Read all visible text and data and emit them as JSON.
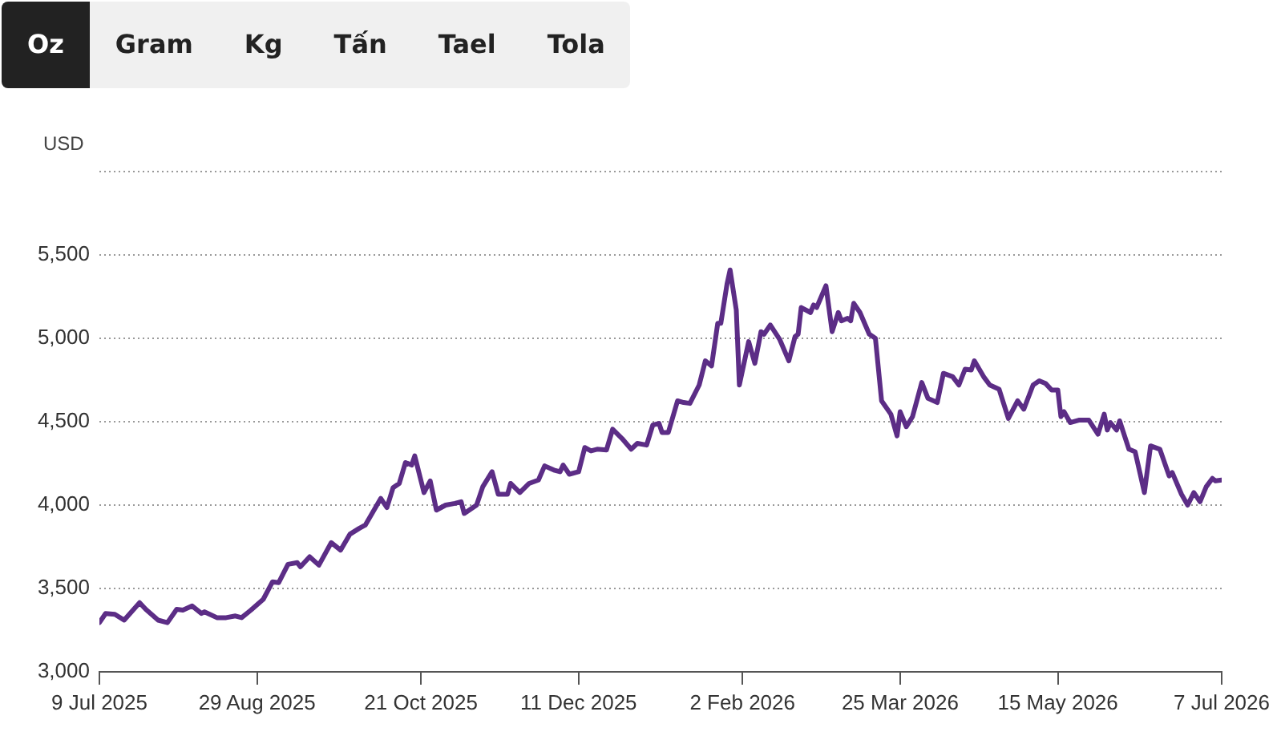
{
  "chart_data": {
    "type": "line",
    "ylabel": "USD",
    "annotations": [
      "Oz",
      "Gram",
      "Kg",
      "Tấn",
      "Tael",
      "Tola"
    ],
    "x": [
      "2025-07-09",
      "2025-07-11",
      "2025-07-14",
      "2025-07-17",
      "2025-07-22",
      "2025-07-24",
      "2025-07-28",
      "2025-07-31",
      "2025-08-03",
      "2025-08-05",
      "2025-08-08",
      "2025-08-11",
      "2025-08-12",
      "2025-08-16",
      "2025-08-19",
      "2025-08-22",
      "2025-08-24",
      "2025-08-27",
      "2025-08-31",
      "2025-09-03",
      "2025-09-05",
      "2025-09-08",
      "2025-09-11",
      "2025-09-12",
      "2025-09-15",
      "2025-09-18",
      "2025-09-22",
      "2025-09-25",
      "2025-09-28",
      "2025-10-01",
      "2025-10-03",
      "2025-10-08",
      "2025-10-10",
      "2025-10-12",
      "2025-10-14",
      "2025-10-16",
      "2025-10-18",
      "2025-10-19",
      "2025-10-22",
      "2025-10-24",
      "2025-10-26",
      "2025-10-29",
      "2025-11-01",
      "2025-11-03",
      "2025-11-04",
      "2025-11-08",
      "2025-11-10",
      "2025-11-13",
      "2025-11-15",
      "2025-11-18",
      "2025-11-19",
      "2025-11-22",
      "2025-11-25",
      "2025-11-28",
      "2025-11-30",
      "2025-12-03",
      "2025-12-05",
      "2025-12-06",
      "2025-12-08",
      "2025-12-11",
      "2025-12-13",
      "2025-12-15",
      "2025-12-17",
      "2025-12-20",
      "2025-12-22",
      "2025-12-25",
      "2025-12-28",
      "2025-12-30",
      "2026-01-02",
      "2026-01-04",
      "2026-01-06",
      "2026-01-07",
      "2026-01-09",
      "2026-01-12",
      "2026-01-14",
      "2026-01-16",
      "2026-01-19",
      "2026-01-21",
      "2026-01-23",
      "2026-01-25",
      "2026-01-26",
      "2026-01-28",
      "2026-01-29",
      "2026-01-31",
      "2026-02-01",
      "2026-02-04",
      "2026-02-06",
      "2026-02-08",
      "2026-02-09",
      "2026-02-11",
      "2026-02-14",
      "2026-02-17",
      "2026-02-19",
      "2026-02-20",
      "2026-02-21",
      "2026-02-24",
      "2026-02-25",
      "2026-02-26",
      "2026-03-01",
      "2026-03-03",
      "2026-03-05",
      "2026-03-06",
      "2026-03-08",
      "2026-03-09",
      "2026-03-10",
      "2026-03-12",
      "2026-03-15",
      "2026-03-17",
      "2026-03-19",
      "2026-03-22",
      "2026-03-24",
      "2026-03-25",
      "2026-03-27",
      "2026-03-29",
      "2026-04-01",
      "2026-04-03",
      "2026-04-06",
      "2026-04-08",
      "2026-04-11",
      "2026-04-13",
      "2026-04-15",
      "2026-04-17",
      "2026-04-18",
      "2026-04-21",
      "2026-04-23",
      "2026-04-26",
      "2026-04-29",
      "2026-05-02",
      "2026-05-04",
      "2026-05-07",
      "2026-05-09",
      "2026-05-11",
      "2026-05-13",
      "2026-05-15",
      "2026-05-16",
      "2026-05-17",
      "2026-05-19",
      "2026-05-22",
      "2026-05-25",
      "2026-05-28",
      "2026-05-30",
      "2026-05-31",
      "2026-06-01",
      "2026-06-03",
      "2026-06-04",
      "2026-06-07",
      "2026-06-09",
      "2026-06-12",
      "2026-06-14",
      "2026-06-17",
      "2026-06-20",
      "2026-06-21",
      "2026-06-24",
      "2026-06-26",
      "2026-06-28",
      "2026-06-30",
      "2026-07-02",
      "2026-07-04",
      "2026-07-05",
      "2026-07-07"
    ],
    "series": [
      {
        "color": "#5c2d86",
        "values": [
          3295,
          3350,
          3345,
          3310,
          3415,
          3375,
          3310,
          3295,
          3375,
          3370,
          3395,
          3350,
          3360,
          3325,
          3325,
          3335,
          3325,
          3370,
          3435,
          3540,
          3535,
          3645,
          3655,
          3630,
          3690,
          3640,
          3775,
          3730,
          3825,
          3860,
          3880,
          4040,
          3985,
          4105,
          4130,
          4255,
          4240,
          4295,
          4075,
          4145,
          3970,
          4000,
          4010,
          4020,
          3950,
          4000,
          4110,
          4200,
          4065,
          4065,
          4130,
          4075,
          4130,
          4150,
          4235,
          4210,
          4200,
          4240,
          4185,
          4200,
          4345,
          4325,
          4335,
          4330,
          4455,
          4400,
          4335,
          4370,
          4360,
          4480,
          4490,
          4435,
          4435,
          4625,
          4615,
          4610,
          4720,
          4865,
          4835,
          5090,
          5090,
          5325,
          5410,
          5170,
          4720,
          4980,
          4850,
          5040,
          5025,
          5080,
          4995,
          4865,
          5010,
          5025,
          5185,
          5155,
          5200,
          5185,
          5315,
          5040,
          5155,
          5105,
          5120,
          5105,
          5210,
          5155,
          5025,
          5000,
          4625,
          4545,
          4415,
          4560,
          4470,
          4530,
          4735,
          4640,
          4615,
          4790,
          4770,
          4720,
          4815,
          4810,
          4865,
          4770,
          4720,
          4695,
          4520,
          4625,
          4575,
          4720,
          4745,
          4730,
          4690,
          4690,
          4530,
          4560,
          4495,
          4510,
          4510,
          4425,
          4545,
          4450,
          4495,
          4450,
          4505,
          4335,
          4320,
          4075,
          4355,
          4335,
          4175,
          4195,
          4065,
          4000,
          4075,
          4020,
          4110,
          4160,
          4145,
          4150
        ]
      }
    ],
    "xlim": [
      "2025-07-09",
      "2026-07-07"
    ],
    "xticks": [
      {
        "value": "2025-07-09",
        "label": "9 Jul 2025"
      },
      {
        "value": "2025-08-29",
        "label": "29 Aug 2025"
      },
      {
        "value": "2025-10-21",
        "label": "21 Oct 2025"
      },
      {
        "value": "2025-12-11",
        "label": "11 Dec 2025"
      },
      {
        "value": "2026-02-02",
        "label": "2 Feb 2026"
      },
      {
        "value": "2026-03-25",
        "label": "25 Mar 2026"
      },
      {
        "value": "2026-05-15",
        "label": "15 May 2026"
      },
      {
        "value": "2026-07-07",
        "label": "7 Jul 2026"
      }
    ],
    "ylim": [
      3000,
      6000
    ],
    "yticks": [
      {
        "value": 3000,
        "label": "3,000"
      },
      {
        "value": 3500,
        "label": "3,500"
      },
      {
        "value": 4000,
        "label": "4,000"
      },
      {
        "value": 4500,
        "label": "4,500"
      },
      {
        "value": 5000,
        "label": "5,000"
      },
      {
        "value": 5500,
        "label": "5,500"
      },
      {
        "value": 6000,
        "label": null
      }
    ],
    "grid": "y",
    "legend": false,
    "marker": "none",
    "line_style": "solid"
  }
}
